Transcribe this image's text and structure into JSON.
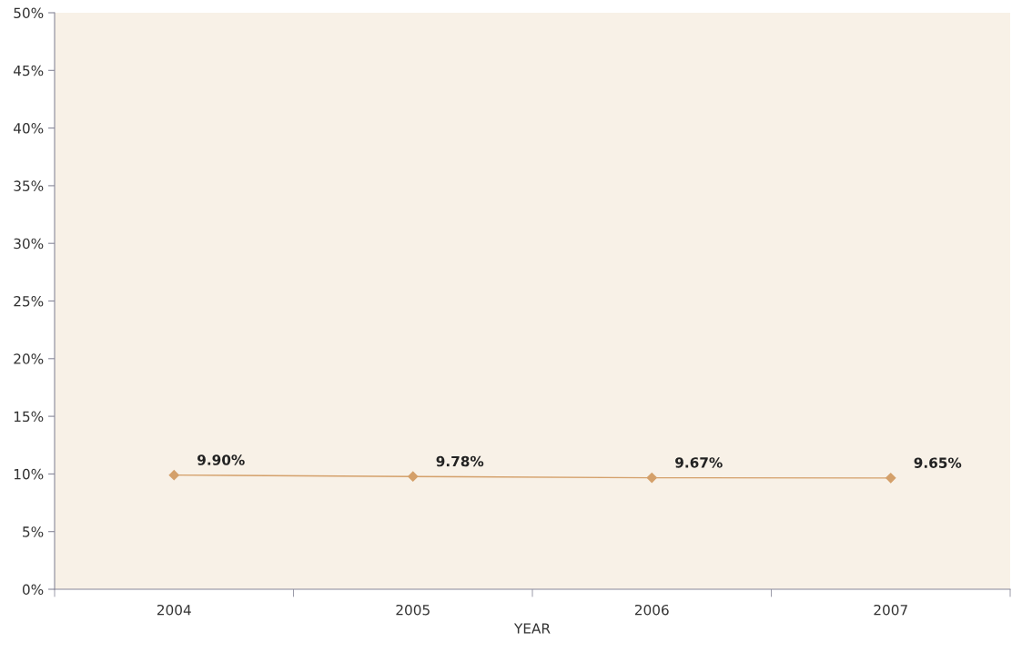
{
  "chart_data": {
    "type": "line",
    "xlabel": "YEAR",
    "categories": [
      "2004",
      "2005",
      "2006",
      "2007"
    ],
    "series": [
      {
        "color": "#d4a06a",
        "values": [
          9.9,
          9.78,
          9.67,
          9.65
        ],
        "value_labels": [
          "9.90%",
          "9.78%",
          "9.67%",
          "9.65%"
        ]
      }
    ],
    "ylim": [
      0,
      50
    ],
    "yticks": [
      {
        "value": 0,
        "label": "0%"
      },
      {
        "value": 5,
        "label": "5%"
      },
      {
        "value": 10,
        "label": "10%"
      },
      {
        "value": 15,
        "label": "15%"
      },
      {
        "value": 20,
        "label": "20%"
      },
      {
        "value": 25,
        "label": "25%"
      },
      {
        "value": 30,
        "label": "30%"
      },
      {
        "value": 35,
        "label": "35%"
      },
      {
        "value": 40,
        "label": "40%"
      },
      {
        "value": 45,
        "label": "45%"
      },
      {
        "value": 50,
        "label": "50%"
      }
    ],
    "marker": "diamond",
    "line_style": "solid",
    "grid": false,
    "legend": false
  }
}
